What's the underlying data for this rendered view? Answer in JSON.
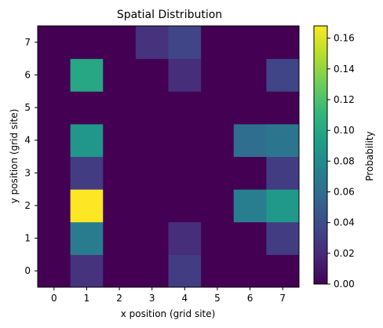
{
  "chart_data": {
    "type": "heatmap",
    "title": "Spatial Distribution",
    "xlabel": "x position (grid site)",
    "ylabel": "y position (grid site)",
    "x_categories": [
      "0",
      "1",
      "2",
      "3",
      "4",
      "5",
      "6",
      "7"
    ],
    "y_categories": [
      "0",
      "1",
      "2",
      "3",
      "4",
      "5",
      "6",
      "7"
    ],
    "values": [
      [
        0.0,
        0.025,
        0.0,
        0.0,
        0.03,
        0.0,
        0.0,
        0.0
      ],
      [
        0.0,
        0.07,
        0.0,
        0.0,
        0.022,
        0.0,
        0.0,
        0.03
      ],
      [
        0.0,
        0.168,
        0.0,
        0.0,
        0.0,
        0.0,
        0.072,
        0.09
      ],
      [
        0.0,
        0.03,
        0.0,
        0.0,
        0.0,
        0.0,
        0.0,
        0.03
      ],
      [
        0.0,
        0.088,
        0.0,
        0.0,
        0.0,
        0.0,
        0.06,
        0.065
      ],
      [
        0.0,
        0.0,
        0.0,
        0.0,
        0.0,
        0.0,
        0.0,
        0.0
      ],
      [
        0.0,
        0.1,
        0.0,
        0.0,
        0.022,
        0.0,
        0.0,
        0.035
      ],
      [
        0.0,
        0.0,
        0.0,
        0.025,
        0.035,
        0.0,
        0.0,
        0.0
      ]
    ],
    "colormap": "viridis",
    "colorbar": {
      "label": "Probability",
      "range": [
        0.0,
        0.168
      ],
      "ticks": [
        "0.00",
        "0.02",
        "0.04",
        "0.06",
        "0.08",
        "0.10",
        "0.12",
        "0.14",
        "0.16"
      ]
    },
    "grid": false,
    "legend": "none"
  }
}
